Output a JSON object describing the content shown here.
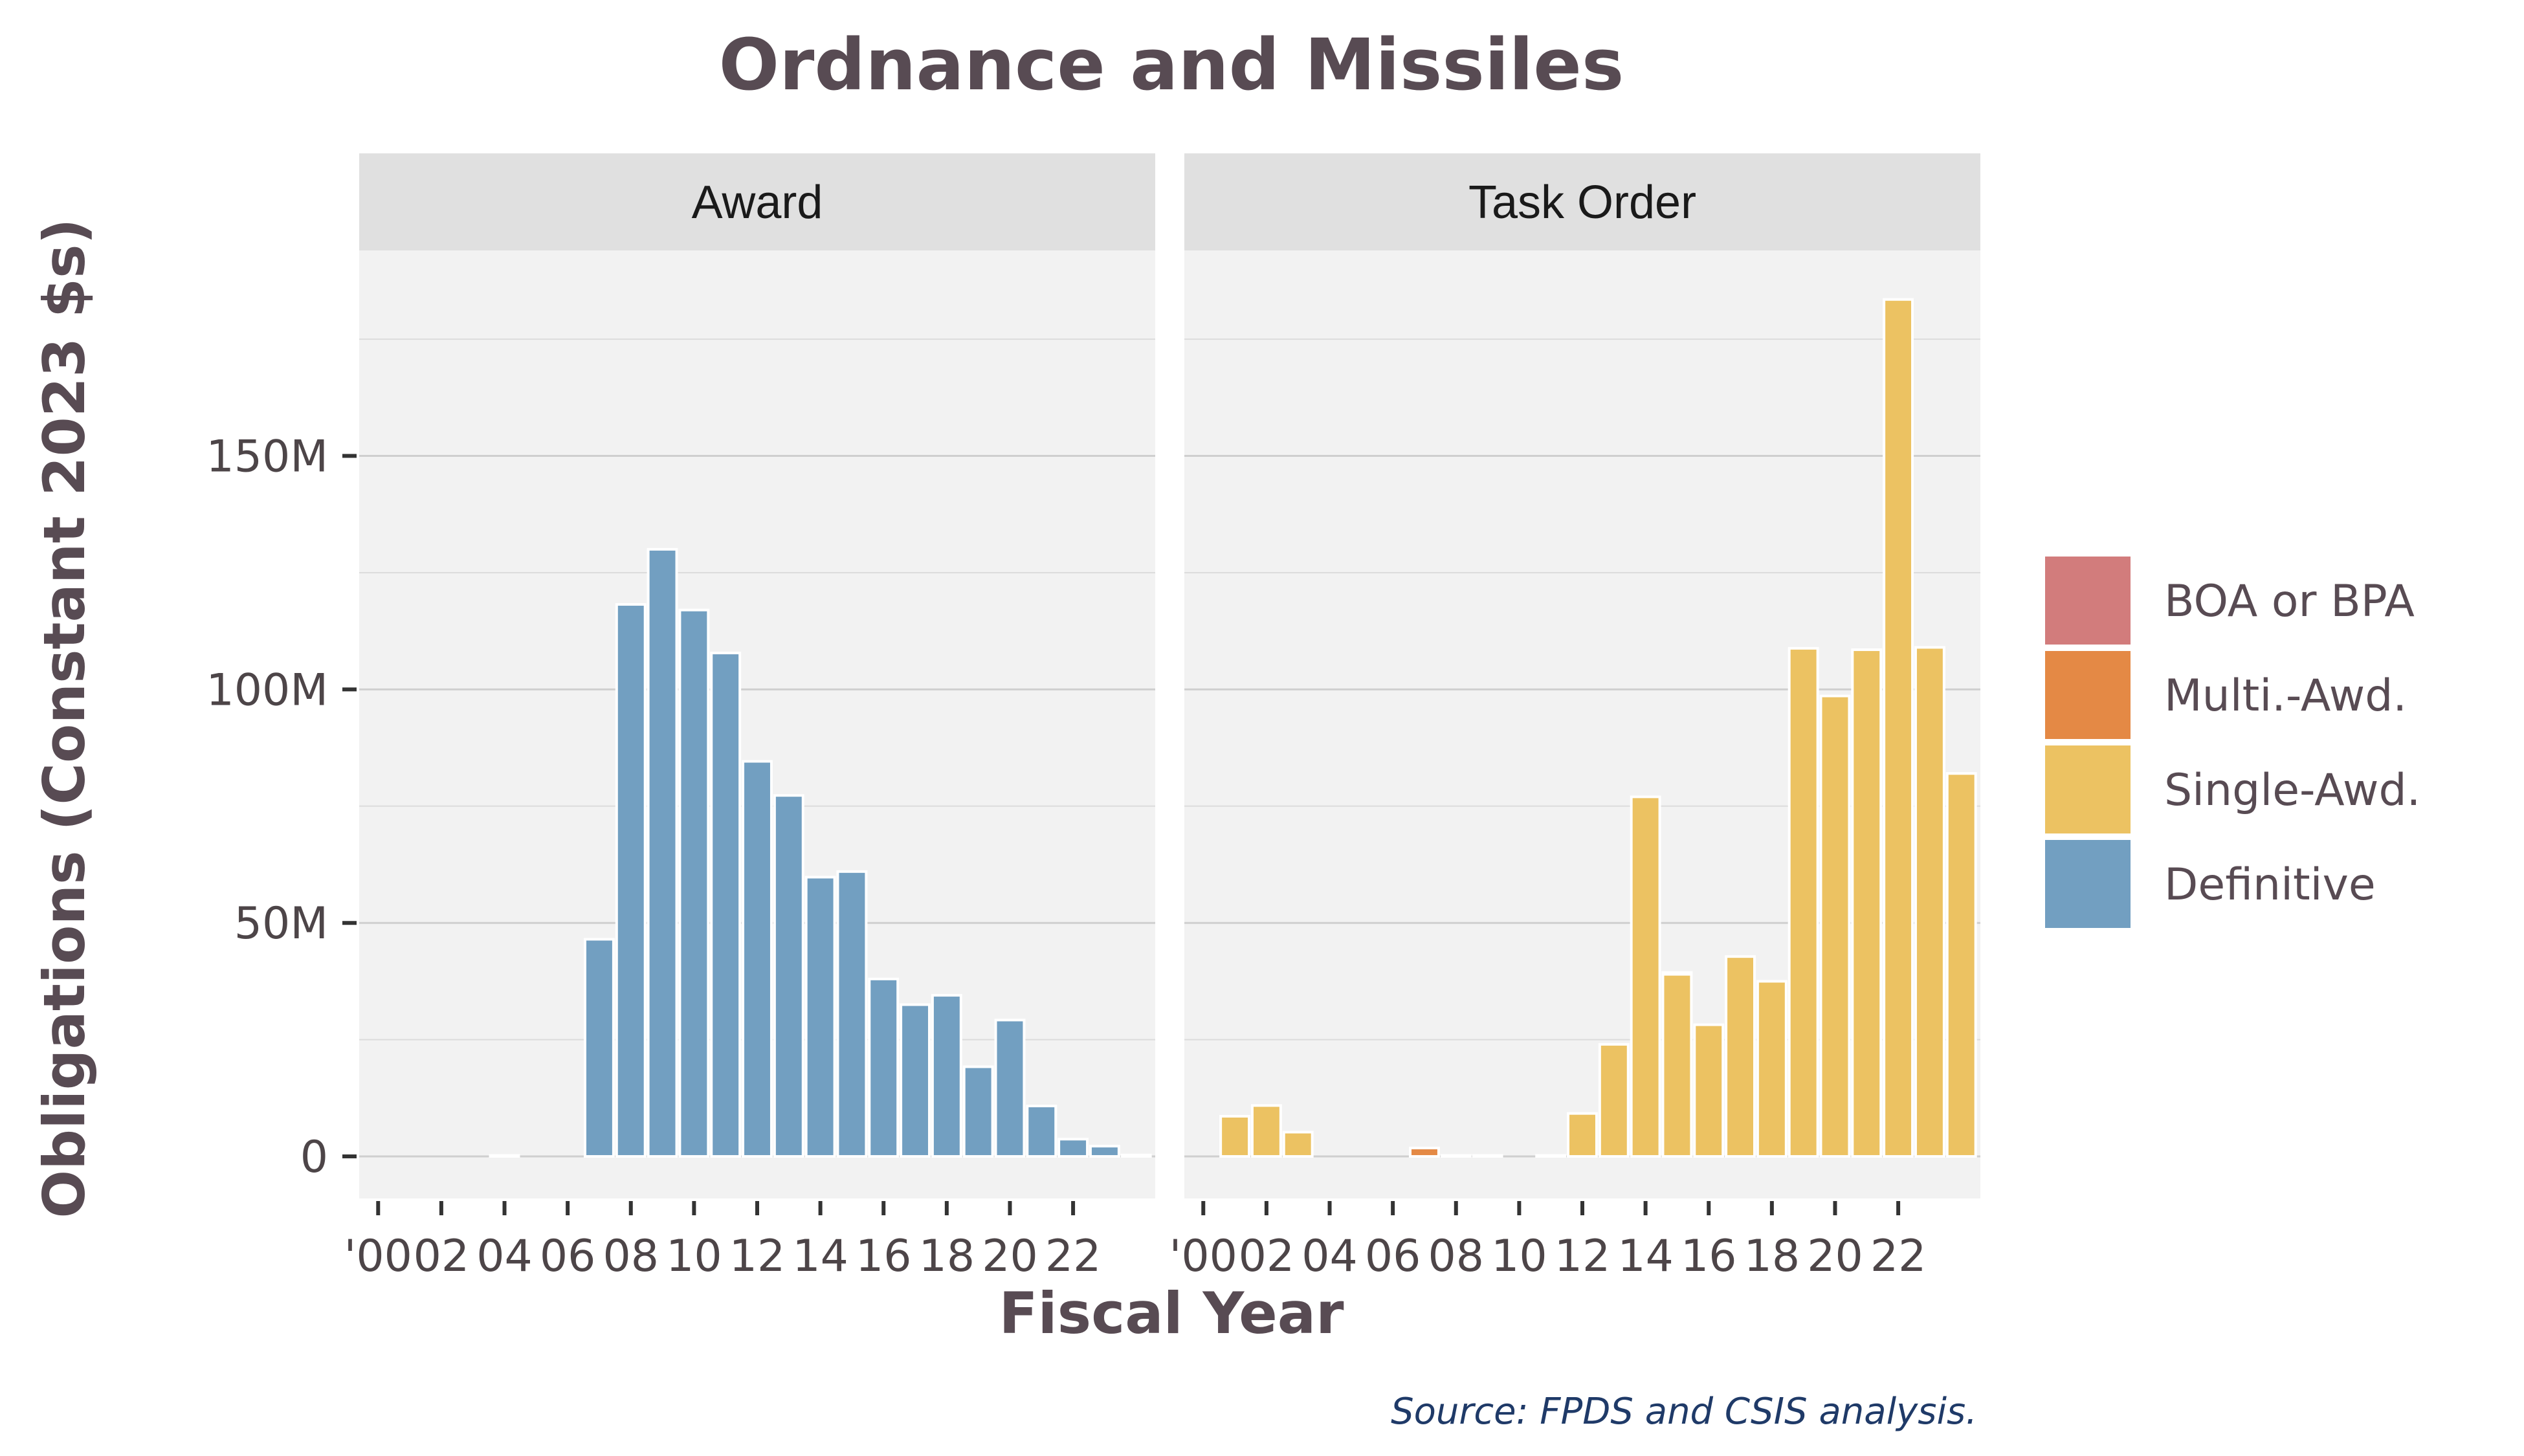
{
  "chart_data": {
    "type": "bar",
    "title": "Ordnance and Missiles",
    "xlabel": "Fiscal Year",
    "ylabel": "Obligations (Constant 2023 $s)",
    "caption": "Source: FPDS and CSIS analysis.",
    "x_tick_labels": [
      "'00",
      "02",
      "04",
      "06",
      "08",
      "10",
      "12",
      "14",
      "16",
      "18",
      "20",
      "22"
    ],
    "x_tick_values": [
      2000,
      2002,
      2004,
      2006,
      2008,
      2010,
      2012,
      2014,
      2016,
      2018,
      2020,
      2022
    ],
    "xlim": [
      1999.4,
      2024.6
    ],
    "y_ticks": [
      0,
      50000000,
      100000000,
      150000000
    ],
    "y_tick_labels": [
      "0",
      "50M",
      "100M",
      "150M"
    ],
    "ylim": [
      -9000000,
      194000000
    ],
    "grid": true,
    "stacked": true,
    "legend_position": "right",
    "legend": [
      {
        "name": "BOA or BPA",
        "color": "#d27c7c"
      },
      {
        "name": "Multi.-Awd.",
        "color": "#e48945"
      },
      {
        "name": "Single-Awd.",
        "color": "#ecc262"
      },
      {
        "name": "Definitive",
        "color": "#729fc1"
      }
    ],
    "years": [
      2000,
      2001,
      2002,
      2003,
      2004,
      2005,
      2006,
      2007,
      2008,
      2009,
      2010,
      2011,
      2012,
      2013,
      2014,
      2015,
      2016,
      2017,
      2018,
      2019,
      2020,
      2021,
      2022,
      2023,
      2024
    ],
    "panels": [
      {
        "label": "Award",
        "series": [
          {
            "name": "Definitive",
            "values": [
              0,
              0,
              0,
              0,
              200000,
              0,
              0,
              46500000,
              118200000,
              130000000,
              117000000,
              107800000,
              84600000,
              77300000,
              59800000,
              61000000,
              38000000,
              32500000,
              34500000,
              19200000,
              29200000,
              10800000,
              3700000,
              2200000,
              300000
            ]
          }
        ]
      },
      {
        "label": "Task Order",
        "series": [
          {
            "name": "BOA or BPA",
            "values": [
              0,
              0,
              0,
              0,
              0,
              0,
              0,
              0,
              0,
              0,
              0,
              0,
              0,
              0,
              0,
              400000,
              0,
              0,
              0,
              0,
              0,
              0,
              0,
              0,
              0
            ]
          },
          {
            "name": "Multi.-Awd.",
            "values": [
              0,
              0,
              0,
              0,
              0,
              0,
              0,
              1800000,
              0,
              200000,
              0,
              0,
              0,
              0,
              0,
              0,
              0,
              0,
              0,
              0,
              0,
              0,
              0,
              0,
              0
            ]
          },
          {
            "name": "Single-Awd.",
            "values": [
              0,
              8600000,
              10900000,
              5200000,
              0,
              0,
              0,
              0,
              200000,
              0,
              0,
              200000,
              9200000,
              24000000,
              77000000,
              39000000,
              28200000,
              42800000,
              37500000,
              108800000,
              98600000,
              108500000,
              183500000,
              109000000,
              82000000
            ]
          }
        ]
      }
    ]
  }
}
